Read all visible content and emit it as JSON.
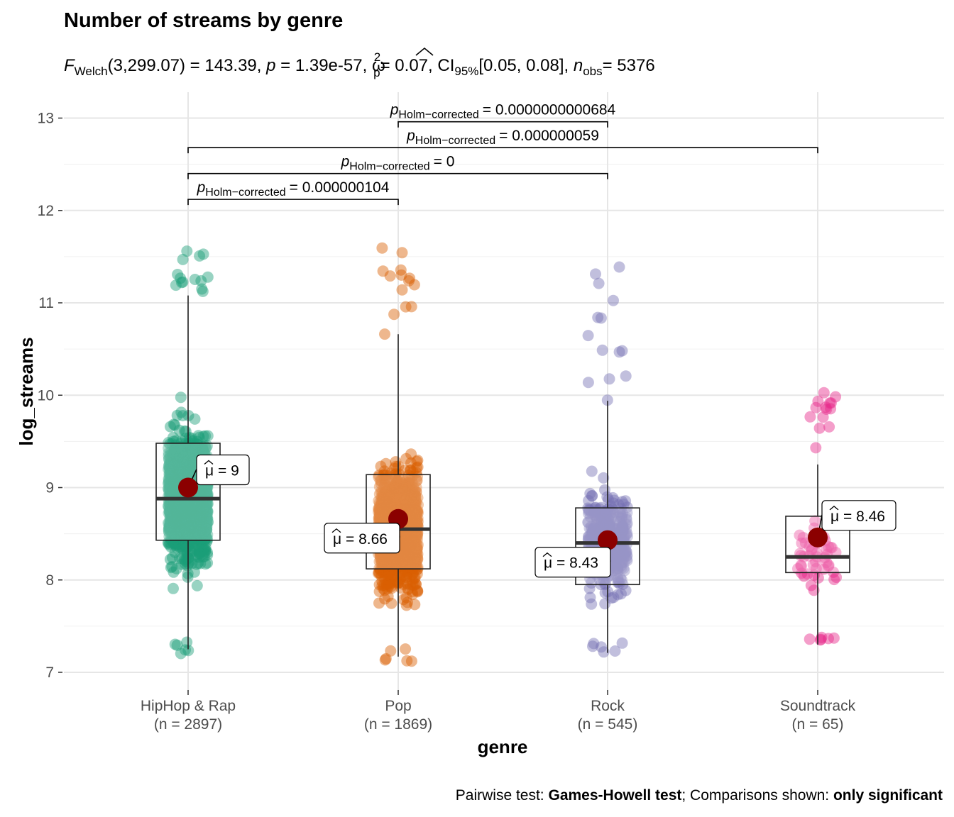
{
  "chart_data": {
    "type": "violin-box-scatter",
    "title": "Number of streams by genre",
    "subtitle": {
      "stat_symbol": "F",
      "stat_sub": "Welch",
      "stat_value": "(3,299.07) = 143.39,",
      "p_symbol": "p",
      "p_value": "= 1.39e-57,",
      "effect_symbol": "ω",
      "effect_sup": "2",
      "effect_sub": "p",
      "effect_value": "= 0.07, CI",
      "ci_sub": "95%",
      "ci_value": "[0.05, 0.08],",
      "n_symbol": "n",
      "n_sub": "obs",
      "n_value": "= 5376"
    },
    "xlabel": "genre",
    "ylabel": "log_streams",
    "ylim": [
      6.85,
      13.25
    ],
    "yticks": [
      7,
      8,
      9,
      10,
      11,
      12,
      13
    ],
    "categories": [
      {
        "name": "HipHop & Rap",
        "n_label": "(n = 2897)",
        "color": "#1b9e77",
        "q1": 8.43,
        "median": 8.88,
        "q3": 9.48,
        "whisker_low": 7.25,
        "whisker_high": 11.08,
        "mean": 9.0,
        "mean_label": "= 9",
        "min": 7.18,
        "max": 11.62
      },
      {
        "name": "Pop",
        "n_label": "(n = 1869)",
        "color": "#d95f02",
        "q1": 8.12,
        "median": 8.55,
        "q3": 9.14,
        "whisker_low": 7.17,
        "whisker_high": 10.66,
        "mean": 8.66,
        "mean_label": "= 8.66",
        "min": 7.11,
        "max": 11.82
      },
      {
        "name": "Rock",
        "n_label": "(n = 545)",
        "color": "#7570b3",
        "q1": 7.95,
        "median": 8.4,
        "q3": 8.78,
        "whisker_low": 7.21,
        "whisker_high": 9.94,
        "mean": 8.43,
        "mean_label": "= 8.43",
        "min": 7.21,
        "max": 11.42
      },
      {
        "name": "Soundtrack",
        "n_label": "(n = 65)",
        "color": "#e7298a",
        "q1": 8.08,
        "median": 8.25,
        "q3": 8.69,
        "whisker_low": 7.3,
        "whisker_high": 9.25,
        "mean": 8.46,
        "mean_label": "= 8.46",
        "min": 7.29,
        "max": 10.03
      }
    ],
    "mean_color": "#8b0000",
    "comparisons": [
      {
        "from": 0,
        "to": 1,
        "y": 12.12,
        "p_symbol": "p",
        "p_sub": "Holm−corrected",
        "p_value": "= 0.000000104"
      },
      {
        "from": 0,
        "to": 2,
        "y": 12.4,
        "p_symbol": "p",
        "p_sub": "Holm−corrected",
        "p_value": "= 0"
      },
      {
        "from": 0,
        "to": 3,
        "y": 12.68,
        "p_symbol": "p",
        "p_sub": "Holm−corrected",
        "p_value": "= 0.000000059"
      },
      {
        "from": 1,
        "to": 2,
        "y": 12.96,
        "p_symbol": "p",
        "p_sub": "Holm−corrected",
        "p_value": "= 0.0000000000684"
      }
    ],
    "caption": {
      "part1": "Pairwise test: ",
      "part2": "Games-Howell test",
      "part3": "; Comparisons shown: ",
      "part4": "only significant"
    },
    "grid": true
  }
}
